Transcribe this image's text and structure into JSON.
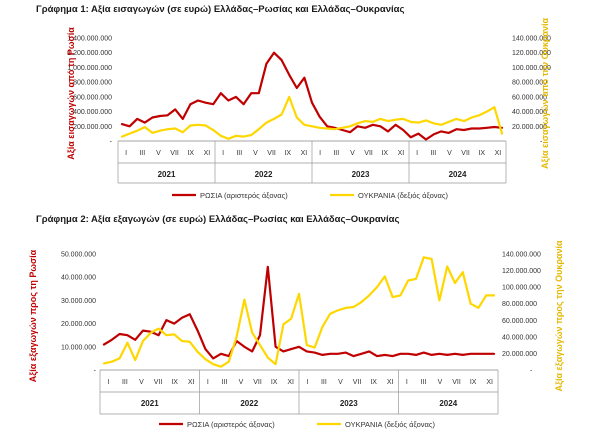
{
  "colors": {
    "russia": "#C00000",
    "ukraine": "#FFD700",
    "axis_left_title": "#C00000",
    "axis_right_title": "#E5B800"
  },
  "chart_data": [
    {
      "type": "line",
      "title": "Γράφημα 1: Αξία εισαγωγών (σε ευρώ) Ελλάδας–Ρωσίας και Ελλάδας–Ουκρανίας",
      "ylabel_left": "Αξία εισαγωγών από τη Ρωσία",
      "ylabel_right": "Αξία εισαγωγών από την Ουκρανία",
      "ylim_left": [
        0,
        1400000000
      ],
      "ylim_right": [
        0,
        140000000
      ],
      "yticks_left": [
        200000000,
        400000000,
        600000000,
        800000000,
        1000000000,
        1200000000,
        1400000000
      ],
      "yticks_left_labels": [
        "200.000.000",
        "400.000.000",
        "600.000.000",
        "800.000.000",
        "1.000.000.000",
        "1.200.000.000",
        "1.400.000.000"
      ],
      "yticks_right": [
        20000000,
        40000000,
        60000000,
        80000000,
        100000000,
        120000000,
        140000000
      ],
      "yticks_right_labels": [
        "20.000.000",
        "40.000.000",
        "60.000.000",
        "80.000.000",
        "100.000.000",
        "120.000.000",
        "140.000.000"
      ],
      "has_dash_zero": true,
      "month_labels": [
        "I",
        "III",
        "V",
        "VII",
        "IX",
        "XI",
        "I",
        "III",
        "V",
        "VII",
        "IX",
        "XI",
        "I",
        "III",
        "V",
        "VII",
        "IX",
        "XI",
        "I",
        "III",
        "V",
        "VII",
        "IX",
        "XI"
      ],
      "years": [
        "2021",
        "2022",
        "2023",
        "2024"
      ],
      "series": [
        {
          "name": "ΡΩΣΙΑ (αριστερός άξονας)",
          "axis": "left",
          "color_key": "russia",
          "values": [
            230000000,
            200000000,
            300000000,
            250000000,
            320000000,
            340000000,
            350000000,
            430000000,
            300000000,
            500000000,
            550000000,
            520000000,
            500000000,
            650000000,
            550000000,
            600000000,
            500000000,
            650000000,
            650000000,
            1050000000,
            1200000000,
            1100000000,
            900000000,
            720000000,
            860000000,
            520000000,
            330000000,
            200000000,
            180000000,
            150000000,
            120000000,
            200000000,
            180000000,
            220000000,
            200000000,
            130000000,
            220000000,
            150000000,
            50000000,
            100000000,
            20000000,
            90000000,
            130000000,
            110000000,
            160000000,
            150000000,
            170000000,
            170000000,
            180000000,
            190000000,
            180000000
          ]
        },
        {
          "name": "ΟΥΚΡΑΝΙΑ (δεξιός άξονας)",
          "axis": "right",
          "color_key": "ukraine",
          "values": [
            6000000,
            10000000,
            14000000,
            19000000,
            11000000,
            14000000,
            16000000,
            17000000,
            12000000,
            21000000,
            22000000,
            21000000,
            15000000,
            7000000,
            3000000,
            7000000,
            6000000,
            8000000,
            16000000,
            25000000,
            30000000,
            36000000,
            60000000,
            32000000,
            22000000,
            20000000,
            18000000,
            17000000,
            16000000,
            18000000,
            20000000,
            24000000,
            27000000,
            26000000,
            30000000,
            27000000,
            29000000,
            30000000,
            26000000,
            25000000,
            28000000,
            24000000,
            22000000,
            26000000,
            30000000,
            27000000,
            32000000,
            35000000,
            40000000,
            46000000,
            10000000
          ]
        }
      ]
    },
    {
      "type": "line",
      "title": "Γράφημα 2: Αξία εξαγωγών (σε ευρώ) Ελλάδας–Ρωσίας και Ελλάδας–Ουκρανίας",
      "ylabel_left": "Αξία εξαγωγών προς τη Ρωσία",
      "ylabel_right": "Αξία εξαγωγών προς την Ουκρανία",
      "ylim_left": [
        0,
        50000000
      ],
      "ylim_right": [
        0,
        140000000
      ],
      "yticks_left": [
        10000000,
        20000000,
        30000000,
        40000000,
        50000000
      ],
      "yticks_left_labels": [
        "10.000.000",
        "20.000.000",
        "30.000.000",
        "40.000.000",
        "50.000.000"
      ],
      "yticks_right": [
        20000000,
        40000000,
        60000000,
        80000000,
        100000000,
        120000000,
        140000000
      ],
      "yticks_right_labels": [
        "20.000.000",
        "40.000.000",
        "60.000.000",
        "80.000.000",
        "100.000.000",
        "120.000.000",
        "140.000.000"
      ],
      "has_dash_zero": true,
      "month_labels": [
        "I",
        "III",
        "V",
        "VII",
        "IX",
        "XI",
        "I",
        "III",
        "V",
        "VII",
        "IX",
        "XI",
        "I",
        "III",
        "V",
        "VII",
        "IX",
        "XI",
        "I",
        "III",
        "V",
        "VII",
        "IX",
        "XI"
      ],
      "years": [
        "2021",
        "2022",
        "2023",
        "2024"
      ],
      "series": [
        {
          "name": "ΡΩΣΙΑ (αριστερός άξονας)",
          "axis": "left",
          "color_key": "russia",
          "values": [
            11000000,
            13000000,
            15500000,
            15000000,
            13000000,
            17000000,
            16500000,
            15000000,
            21500000,
            20000000,
            22500000,
            24000000,
            17000000,
            9000000,
            5000000,
            7000000,
            6000000,
            12500000,
            10000000,
            8000000,
            15000000,
            44500000,
            10000000,
            8000000,
            9000000,
            10000000,
            8000000,
            7500000,
            6500000,
            7000000,
            7000000,
            7500000,
            6000000,
            7000000,
            8000000,
            6000000,
            6500000,
            6000000,
            7000000,
            7000000,
            6500000,
            7500000,
            6500000,
            7000000,
            6500000,
            7000000,
            6500000,
            7000000,
            7000000,
            7000000,
            7000000
          ]
        },
        {
          "name": "ΟΥΚΡΑΝΙΑ (δεξιός άξονας)",
          "axis": "right",
          "color_key": "ukraine",
          "values": [
            8000000,
            10000000,
            14000000,
            33000000,
            12000000,
            35000000,
            45000000,
            50000000,
            42000000,
            43000000,
            35000000,
            34000000,
            22000000,
            13000000,
            7000000,
            4000000,
            10000000,
            40000000,
            85000000,
            45000000,
            30000000,
            15000000,
            7000000,
            55000000,
            62000000,
            92000000,
            30000000,
            27000000,
            52000000,
            68000000,
            72000000,
            75000000,
            76000000,
            82000000,
            90000000,
            100000000,
            113000000,
            88000000,
            90000000,
            108000000,
            110000000,
            136000000,
            134000000,
            84000000,
            125000000,
            105000000,
            118000000,
            80000000,
            75000000,
            90000000,
            90000000
          ]
        }
      ]
    }
  ]
}
